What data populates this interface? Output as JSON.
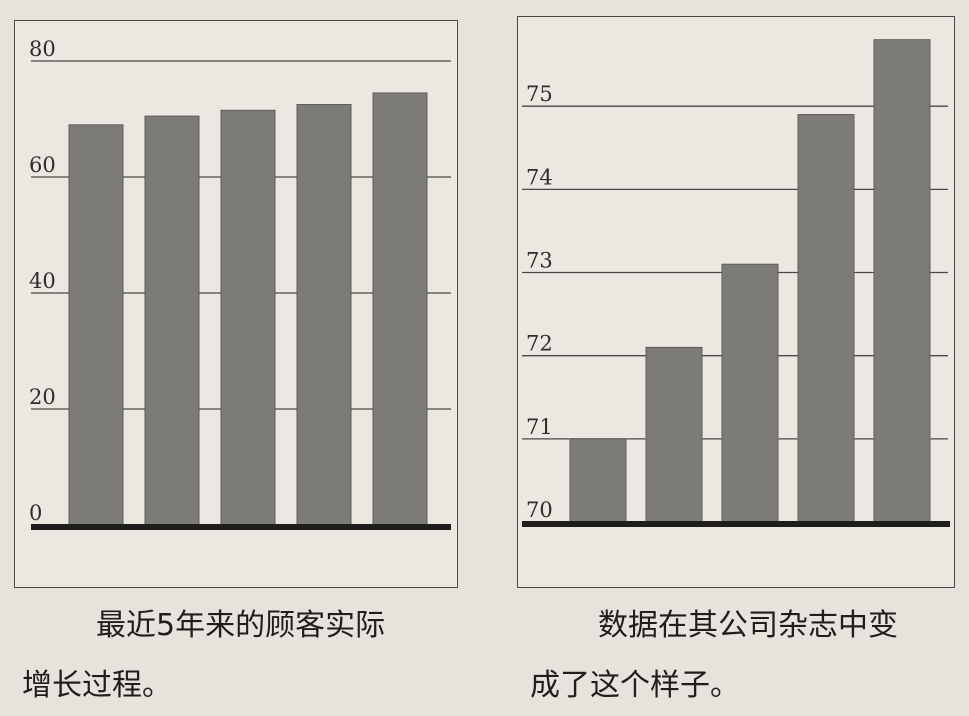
{
  "chart_data": [
    {
      "type": "bar",
      "categories": [
        "",
        "",
        "",
        "",
        ""
      ],
      "values": [
        69,
        70.5,
        71.5,
        72.5,
        74.5
      ],
      "ylim": [
        0,
        80
      ],
      "yticks": [
        0,
        20,
        40,
        60,
        80
      ],
      "ytick_labels": [
        "0",
        "20",
        "40",
        "60",
        "80"
      ],
      "title": "",
      "xlabel": "",
      "ylabel": "",
      "grid": "horizontal",
      "bar_color": "#7d7b77",
      "caption": [
        "最近5年来的顾客实际",
        "增长过程。"
      ]
    },
    {
      "type": "bar",
      "categories": [
        "",
        "",
        "",
        "",
        ""
      ],
      "values": [
        71,
        72.1,
        73.1,
        74.9,
        75.8
      ],
      "ylim": [
        70,
        75.7
      ],
      "yticks": [
        70,
        71,
        72,
        73,
        74,
        75
      ],
      "ytick_labels": [
        "70",
        "71",
        "72",
        "73",
        "74",
        "75"
      ],
      "title": "",
      "xlabel": "",
      "ylabel": "",
      "grid": "horizontal",
      "bar_color": "#7d7b77",
      "caption": [
        "数据在其公司杂志中变",
        "成了这个样子。"
      ]
    }
  ],
  "colors": {
    "bar": "#7d7b77",
    "axis": "#1e1d1b",
    "grid": "#4a4844",
    "paper": "#ebe8e2"
  }
}
